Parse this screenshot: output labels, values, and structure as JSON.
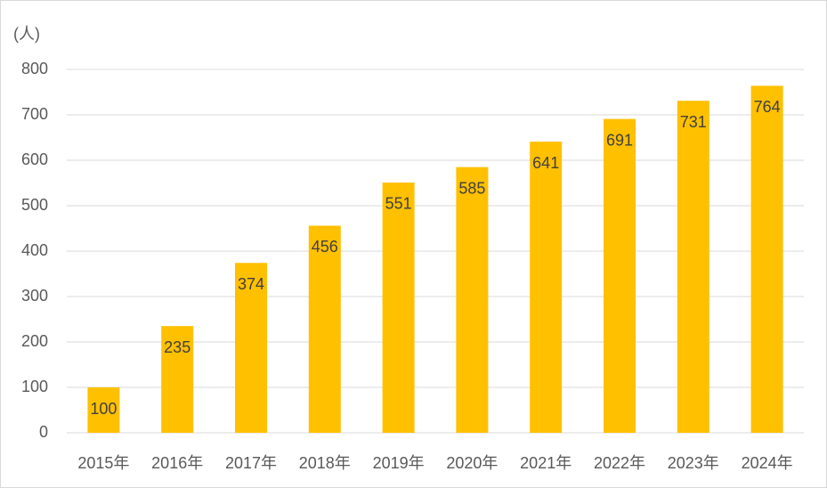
{
  "chart_data": {
    "type": "bar",
    "y_label": "(人)",
    "categories": [
      "2015年",
      "2016年",
      "2017年",
      "2018年",
      "2019年",
      "2020年",
      "2021年",
      "2022年",
      "2023年",
      "2024年"
    ],
    "values": [
      100,
      235,
      374,
      456,
      551,
      585,
      641,
      691,
      731,
      764
    ],
    "color": "#ffc000",
    "ylim": [
      0,
      800
    ],
    "yticks": [
      0,
      100,
      200,
      300,
      400,
      500,
      600,
      700,
      800
    ],
    "grid": true
  }
}
